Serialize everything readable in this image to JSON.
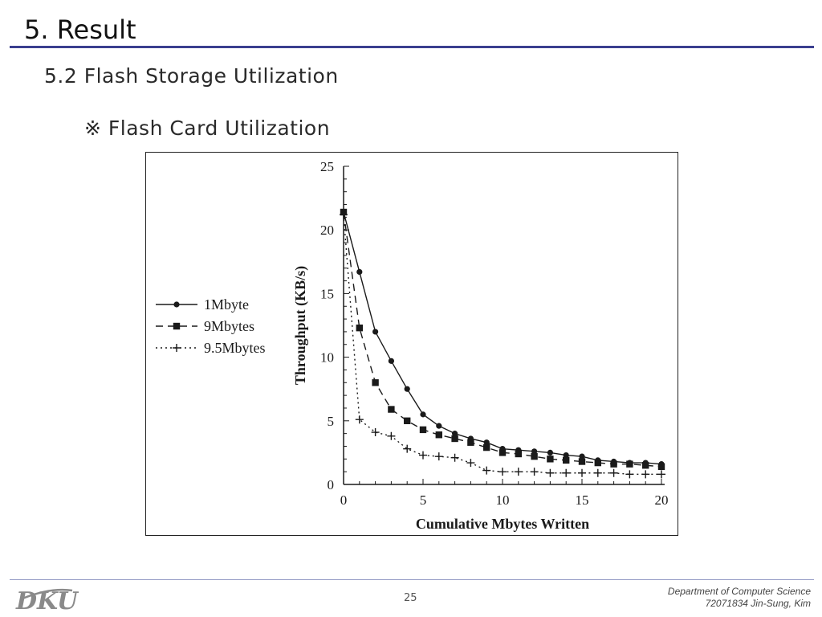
{
  "slide": {
    "title": "5. Result",
    "subtitle": "5.2 Flash Storage Utilization",
    "section": "※ Flash Card Utilization"
  },
  "footer": {
    "page_number": "25",
    "department": "Department of Computer Science",
    "author": "72071834 Jin-Sung, Kim",
    "logo": "DKU"
  },
  "chart_data": {
    "type": "line",
    "title": "",
    "xlabel": "Cumulative Mbytes Written",
    "ylabel": "Throughput (KB/s)",
    "xlim": [
      0,
      20
    ],
    "ylim": [
      0,
      25
    ],
    "x_ticks": [
      "0",
      "5",
      "10",
      "15",
      "20"
    ],
    "y_ticks": [
      "0",
      "5",
      "10",
      "15",
      "20",
      "25"
    ],
    "grid": false,
    "legend_position": "left",
    "series": [
      {
        "name": "1Mbyte",
        "marker": "circle",
        "line": "solid",
        "x": [
          0,
          1,
          2,
          3,
          4,
          5,
          6,
          7,
          8,
          9,
          10,
          11,
          12,
          13,
          14,
          15,
          16,
          17,
          18,
          19,
          20
        ],
        "y": [
          21.4,
          16.7,
          12.0,
          9.7,
          7.5,
          5.5,
          4.6,
          4.0,
          3.6,
          3.3,
          2.8,
          2.7,
          2.6,
          2.5,
          2.3,
          2.2,
          1.9,
          1.8,
          1.7,
          1.7,
          1.6
        ]
      },
      {
        "name": "9Mbytes",
        "marker": "square",
        "line": "dashed",
        "x": [
          0,
          1,
          2,
          3,
          4,
          5,
          6,
          7,
          8,
          9,
          10,
          11,
          12,
          13,
          14,
          15,
          16,
          17,
          18,
          19,
          20
        ],
        "y": [
          21.4,
          12.3,
          8.0,
          5.9,
          5.0,
          4.3,
          3.9,
          3.6,
          3.3,
          2.9,
          2.5,
          2.4,
          2.2,
          2.0,
          1.9,
          1.8,
          1.7,
          1.6,
          1.6,
          1.5,
          1.4
        ]
      },
      {
        "name": "9.5Mbytes",
        "marker": "plus",
        "line": "dotted",
        "x": [
          0,
          1,
          2,
          3,
          4,
          5,
          6,
          7,
          8,
          9,
          10,
          11,
          12,
          13,
          14,
          15,
          16,
          17,
          18,
          19,
          20
        ],
        "y": [
          21.2,
          5.1,
          4.1,
          3.8,
          2.8,
          2.3,
          2.2,
          2.1,
          1.7,
          1.1,
          1.0,
          1.0,
          1.0,
          0.9,
          0.9,
          0.9,
          0.9,
          0.9,
          0.8,
          0.8,
          0.8
        ]
      }
    ],
    "colors": {
      "line": "#1a1a1a"
    }
  }
}
